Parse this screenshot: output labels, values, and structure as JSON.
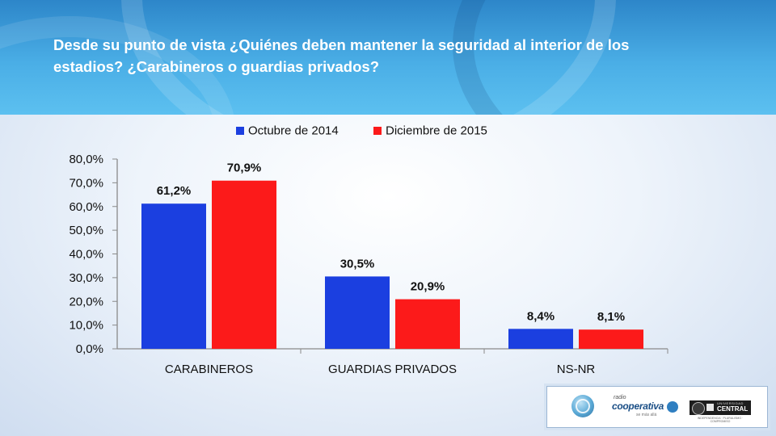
{
  "title": "Desde su punto de vista ¿Quiénes deben mantener la seguridad al interior de los estadios? ¿Carabineros o guardias privados?",
  "chart_data": {
    "type": "bar",
    "categories": [
      "CARABINEROS",
      "GUARDIAS PRIVADOS",
      "NS-NR"
    ],
    "series": [
      {
        "name": "Octubre de 2014",
        "values": [
          61.2,
          30.5,
          8.4
        ],
        "labels": [
          "61,2%",
          "30,5%",
          "8,4%"
        ],
        "color": "#1b3fe0"
      },
      {
        "name": "Diciembre de 2015",
        "values": [
          70.9,
          20.9,
          8.1
        ],
        "labels": [
          "70,9%",
          "20,9%",
          "8,1%"
        ],
        "color": "#fc1a1a"
      }
    ],
    "yticks": [
      "0,0%",
      "10,0%",
      "20,0%",
      "30,0%",
      "40,0%",
      "50,0%",
      "60,0%",
      "70,0%",
      "80,0%"
    ],
    "ylim": [
      0,
      80
    ],
    "legend": "top",
    "grid": false
  },
  "logos": {
    "cooperativa_radio": "radio",
    "cooperativa_name": "cooperativa",
    "cooperativa_tag": "se más allá",
    "uc_university": "UNIVERSIDAD",
    "uc_central": "CENTRAL",
    "uc_motto": "INDEPENDENCIA · PLURALISMO · COMPROMISO"
  }
}
